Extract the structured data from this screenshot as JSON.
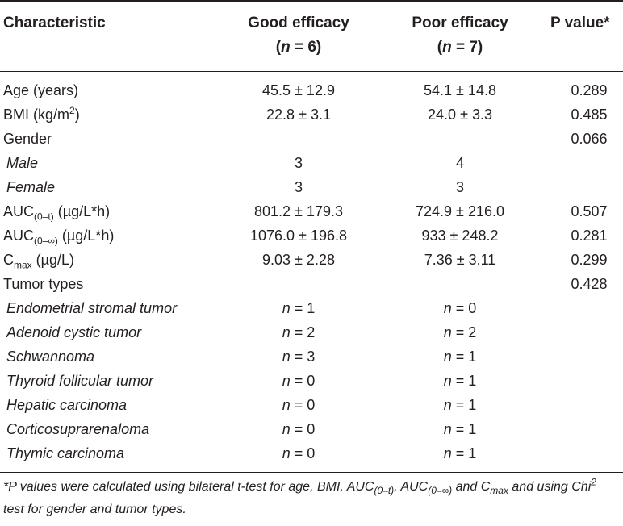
{
  "header": {
    "characteristic": "Characteristic",
    "good_label": "Good efficacy",
    "good_n_prefix": "n",
    "good_n_value": " = 6)",
    "poor_label": "Poor efficacy",
    "poor_n_prefix": "n",
    "poor_n_value": " = 7)",
    "pvalue": "P value*"
  },
  "rows": {
    "age": {
      "label": "Age (years)",
      "good": "45.5 ± 12.9",
      "poor": "54.1 ± 14.8",
      "p": "0.289"
    },
    "bmi": {
      "label": "BMI (kg/m",
      "sup": "2",
      "label_end": ")",
      "good": "22.8 ± 3.1",
      "poor": "24.0 ± 3.3",
      "p": "0.485"
    },
    "gender": {
      "label": "Gender",
      "p": "0.066"
    },
    "male": {
      "label": "Male",
      "good": "3",
      "poor": "4"
    },
    "female": {
      "label": "Female",
      "good": "3",
      "poor": "3"
    },
    "auc0t": {
      "label": "AUC",
      "sub": "(0–t)",
      "unit": " (µg/L*h)",
      "good": "801.2 ± 179.3",
      "poor": "724.9 ± 216.0",
      "p": "0.507"
    },
    "auc0inf": {
      "label": "AUC",
      "sub": "(0–∞)",
      "unit": " (µg/L*h)",
      "good": "1076.0 ± 196.8",
      "poor": "933 ± 248.2",
      "p": "0.281"
    },
    "cmax": {
      "label": "C",
      "sub": "max",
      "unit": " (µg/L)",
      "good": "9.03 ± 2.28",
      "poor": "7.36 ± 3.11",
      "p": "0.299"
    },
    "tumor": {
      "label": "Tumor types",
      "p": "0.428"
    },
    "tumor_types": [
      {
        "label": "Endometrial stromal tumor",
        "good": " = 1",
        "poor": " = 0"
      },
      {
        "label": "Adenoid cystic tumor",
        "good": " = 2",
        "poor": " = 2"
      },
      {
        "label": "Schwannoma",
        "good": " = 3",
        "poor": " = 1"
      },
      {
        "label": "Thyroid follicular tumor",
        "good": " = 0",
        "poor": " = 1"
      },
      {
        "label": "Hepatic carcinoma",
        "good": " = 0",
        "poor": " = 1"
      },
      {
        "label": "Corticosuprarenaloma",
        "good": " = 0",
        "poor": " = 1"
      },
      {
        "label": "Thymic carcinoma",
        "good": " = 0",
        "poor": " = 1"
      }
    ],
    "n_symbol": "n"
  },
  "footnote": {
    "part1": "*P values were calculated using bilateral t-test for age, BMI, AUC",
    "sub1": "(0–t)",
    "part2": ", AUC",
    "sub2": "(0–∞)",
    "part3": " and C",
    "sub3": "max",
    "part4": "and using Chi",
    "sup": "2",
    "part5": " test for gender and tumor types."
  }
}
